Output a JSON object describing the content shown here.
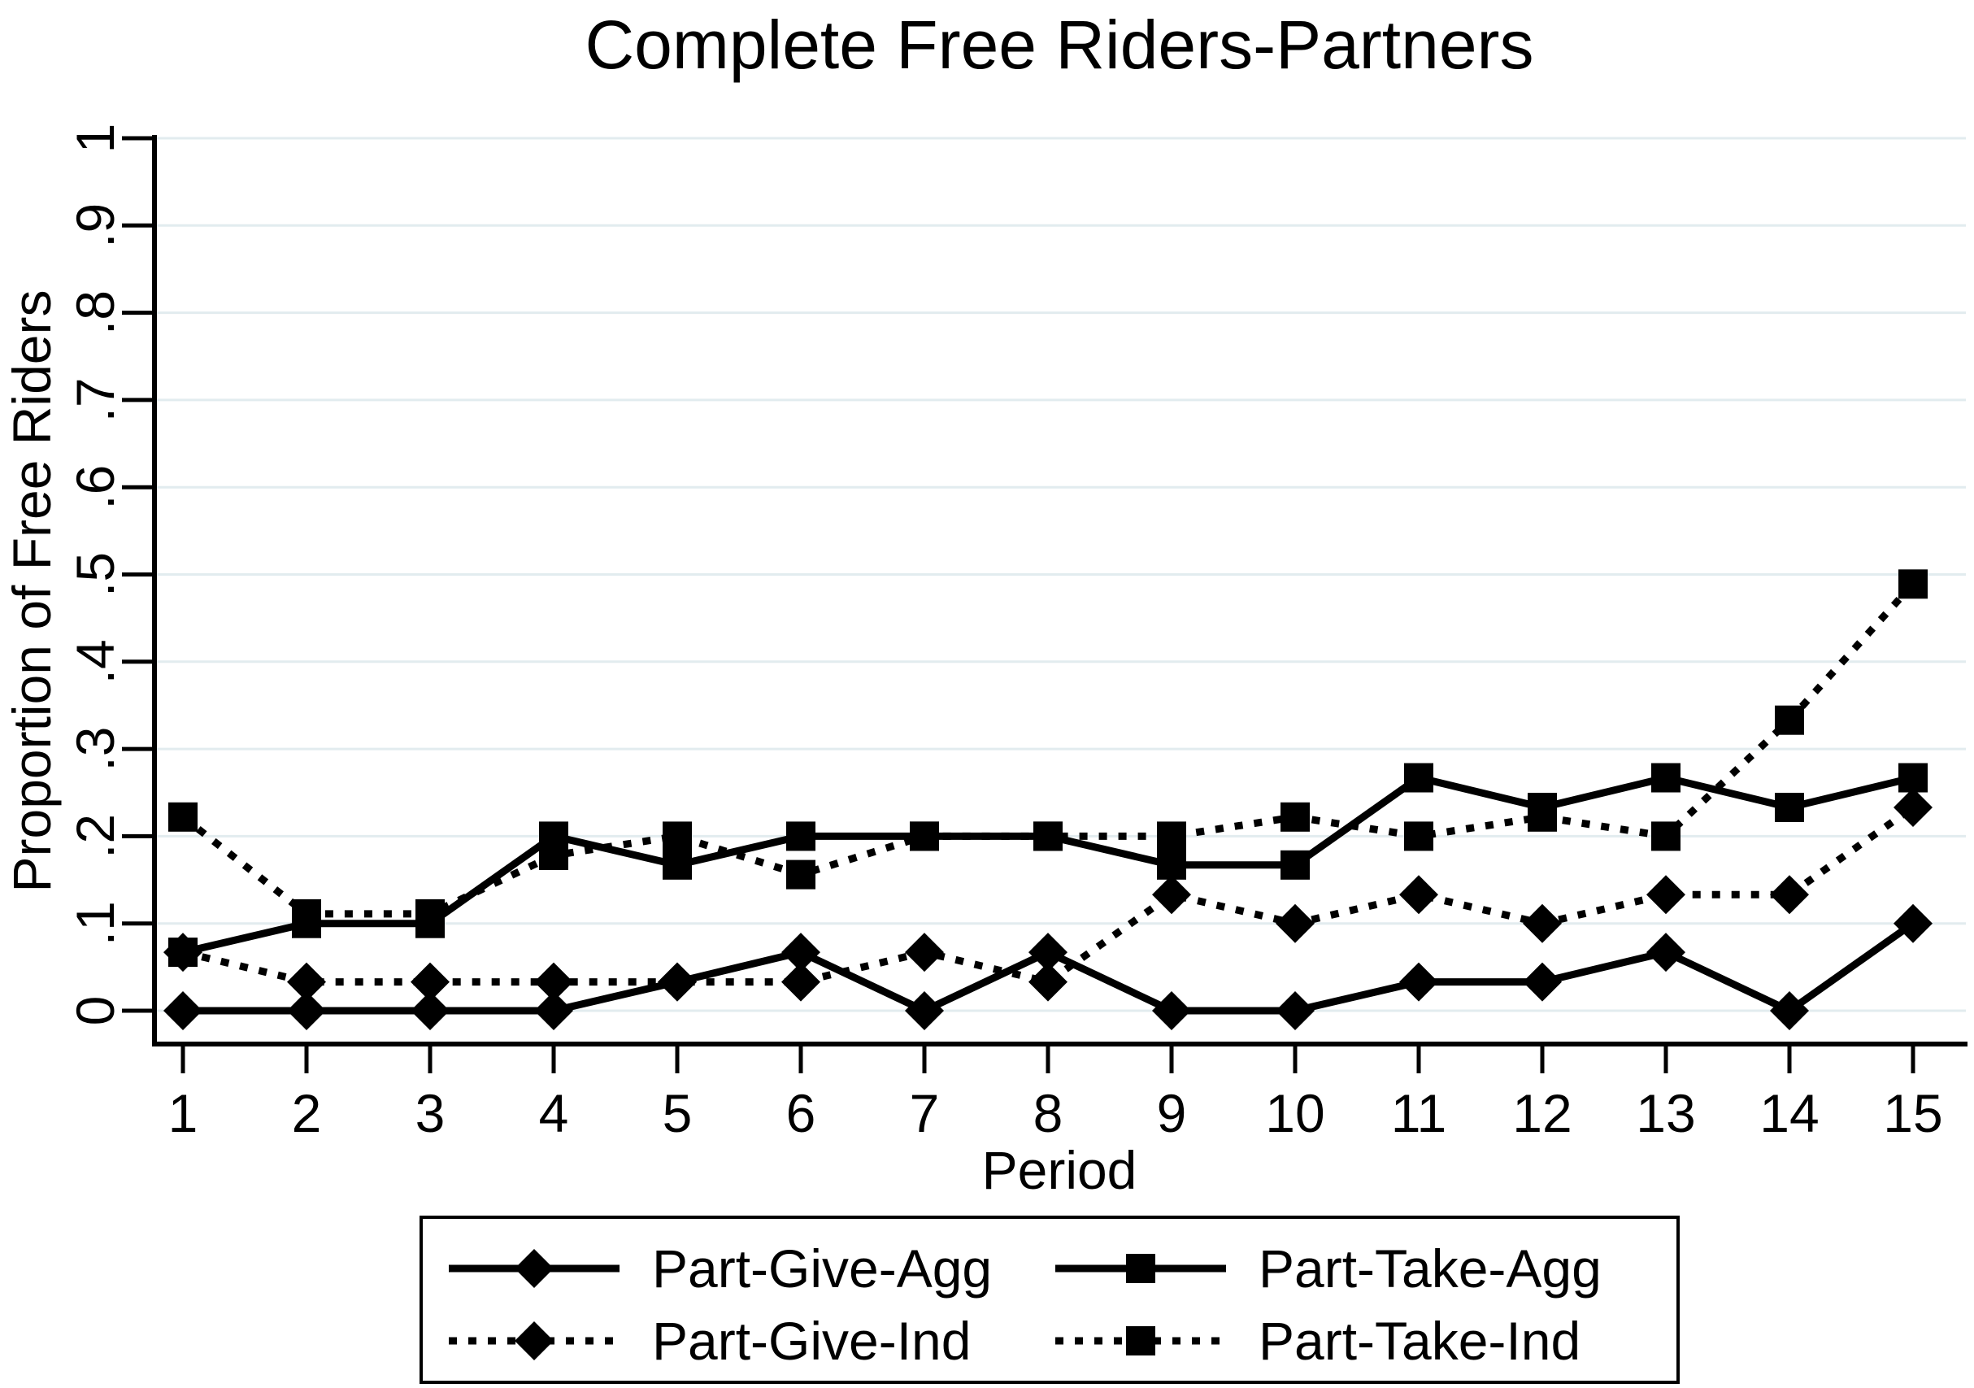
{
  "page": {
    "background": "#ffffff"
  },
  "chart_data": {
    "type": "line",
    "title": "Complete Free Riders-Partners",
    "xlabel": "Period",
    "ylabel": "Proportion of Free Riders",
    "x": [
      1,
      2,
      3,
      4,
      5,
      6,
      7,
      8,
      9,
      10,
      11,
      12,
      13,
      14,
      15
    ],
    "x_tick_labels": [
      "1",
      "2",
      "3",
      "4",
      "5",
      "6",
      "7",
      "8",
      "9",
      "10",
      "11",
      "12",
      "13",
      "14",
      "15"
    ],
    "ylim": [
      0,
      1
    ],
    "y_tick_values": [
      0,
      0.1,
      0.2,
      0.3,
      0.4,
      0.5,
      0.6,
      0.7,
      0.8,
      0.9,
      1
    ],
    "y_tick_labels": [
      "0",
      ".1",
      ".2",
      ".3",
      ".4",
      ".5",
      ".6",
      ".7",
      ".8",
      ".9",
      "1"
    ],
    "grid": "horizontal",
    "legend_position": "bottom-box",
    "colors": {
      "foreground": "#000000",
      "gridline": "#e2ecef",
      "background": "#ffffff"
    },
    "series": [
      {
        "name": "Part-Give-Agg",
        "marker": "diamond",
        "line": "solid",
        "values": [
          0,
          0,
          0,
          0,
          0.033,
          0.067,
          0,
          0.067,
          0,
          0,
          0.033,
          0.033,
          0.067,
          0,
          0.1
        ]
      },
      {
        "name": "Part-Take-Agg",
        "marker": "square",
        "line": "solid",
        "values": [
          0.067,
          0.1,
          0.1,
          0.2,
          0.167,
          0.2,
          0.2,
          0.2,
          0.167,
          0.167,
          0.267,
          0.233,
          0.267,
          0.233,
          0.267
        ]
      },
      {
        "name": "Part-Give-Ind",
        "marker": "diamond",
        "line": "dotted",
        "values": [
          0.067,
          0.033,
          0.033,
          0.033,
          0.033,
          0.033,
          0.067,
          0.033,
          0.133,
          0.1,
          0.133,
          0.1,
          0.133,
          0.133,
          0.233
        ]
      },
      {
        "name": "Part-Take-Ind",
        "marker": "square",
        "line": "dotted",
        "values": [
          0.222,
          0.111,
          0.111,
          0.178,
          0.2,
          0.156,
          0.2,
          0.2,
          0.2,
          0.222,
          0.2,
          0.222,
          0.2,
          0.333,
          0.489
        ]
      }
    ]
  }
}
